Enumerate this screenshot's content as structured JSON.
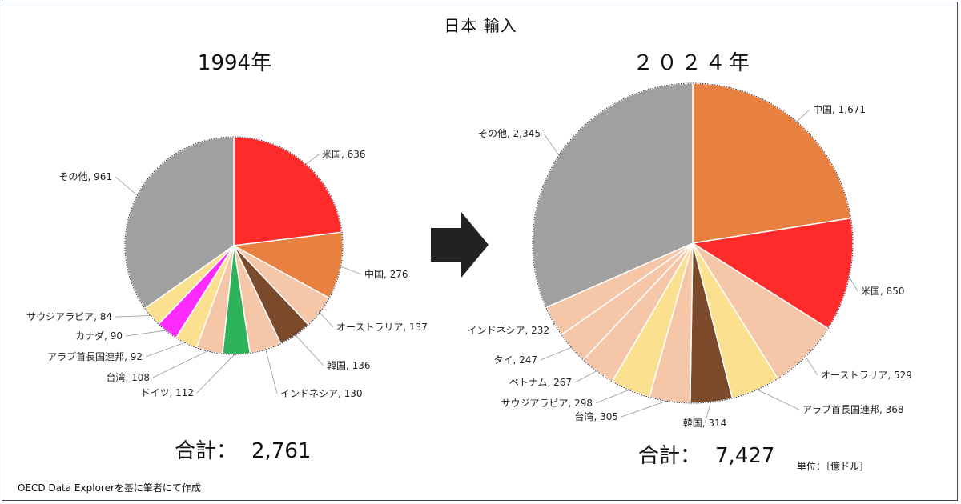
{
  "title": "日本 輸入",
  "unit_label": "単位：［億ドル］",
  "source": "OECD Data Explorerを基に筆者にて作成",
  "total_prefix": "合計：",
  "colors": {
    "usa": "#ff2b2b",
    "china": "#e8803f",
    "light_salmon": "#f5c6a8",
    "brown": "#7b4a2a",
    "green": "#2fb35a",
    "magenta": "#ff2bff",
    "yellow": "#fbe08f",
    "gray": "#a0a0a0",
    "arrow": "#222222",
    "border": "#3a4a5a"
  },
  "chart_data": [
    {
      "type": "pie",
      "title": "1994年",
      "total": "2,761",
      "slices": [
        {
          "label": "米国",
          "value": 636,
          "color": "#ff2b2b"
        },
        {
          "label": "中国",
          "value": 276,
          "color": "#e8803f"
        },
        {
          "label": "オーストラリア",
          "value": 137,
          "color": "#f5c6a8"
        },
        {
          "label": "韓国",
          "value": 136,
          "color": "#7b4a2a"
        },
        {
          "label": "インドネシア",
          "value": 130,
          "color": "#f5c6a8"
        },
        {
          "label": "ドイツ",
          "value": 112,
          "color": "#2fb35a"
        },
        {
          "label": "台湾",
          "value": 108,
          "color": "#f5c6a8"
        },
        {
          "label": "アラブ首長国連邦",
          "value": 92,
          "color": "#fbe08f"
        },
        {
          "label": "カナダ",
          "value": 90,
          "color": "#ff2bff"
        },
        {
          "label": "サウジアラビア",
          "value": 84,
          "color": "#fbe08f"
        },
        {
          "label": "その他",
          "value": 961,
          "color": "#a0a0a0"
        }
      ]
    },
    {
      "type": "pie",
      "title": "２０２４年",
      "total": "7,427",
      "slices": [
        {
          "label": "中国",
          "value": 1671,
          "color": "#e8803f"
        },
        {
          "label": "米国",
          "value": 850,
          "color": "#ff2b2b"
        },
        {
          "label": "オーストラリア",
          "value": 529,
          "color": "#f5c6a8"
        },
        {
          "label": "アラブ首長国連邦",
          "value": 368,
          "color": "#fbe08f"
        },
        {
          "label": "韓国",
          "value": 314,
          "color": "#7b4a2a"
        },
        {
          "label": "台湾",
          "value": 305,
          "color": "#f5c6a8"
        },
        {
          "label": "サウジアラビア",
          "value": 298,
          "color": "#fbe08f"
        },
        {
          "label": "ベトナム",
          "value": 267,
          "color": "#f5c6a8"
        },
        {
          "label": "タイ",
          "value": 247,
          "color": "#f5c6a8"
        },
        {
          "label": "インドネシア",
          "value": 232,
          "color": "#f5c6a8"
        },
        {
          "label": "その他",
          "value": 2345,
          "color": "#a0a0a0"
        }
      ]
    }
  ]
}
